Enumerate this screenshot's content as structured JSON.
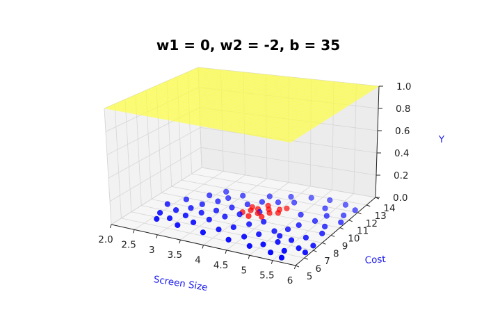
{
  "chart_data": {
    "type": "scatter",
    "subtype": "3d-surface-and-scatter",
    "title": "w1 = 0, w2 = -2, b = 35",
    "xlabel": "Screen Size",
    "ylabel": "Cost",
    "zlabel": "Y",
    "xlim": [
      2.0,
      6.0
    ],
    "ylim": [
      5,
      14
    ],
    "zlim": [
      0.0,
      1.0
    ],
    "x_ticks": [
      "2.0",
      "2.5",
      "3",
      "3.5",
      "4",
      "4.5",
      "5",
      "5.5",
      "6"
    ],
    "y_ticks": [
      "5",
      "6",
      "7",
      "8",
      "9",
      "10",
      "11",
      "12",
      "13",
      "14"
    ],
    "z_ticks": [
      "0.0",
      "0.2",
      "0.4",
      "0.6",
      "0.8",
      "1.0"
    ],
    "grid": true,
    "surface": {
      "color": "#ffff00",
      "function": "sigmoid(w1*x + w2*y + b)",
      "w1": 0,
      "w2": -2,
      "b": 35
    },
    "colors": {
      "class0": "#0000ff",
      "class1": "#ff0000"
    },
    "series": [
      {
        "class": 0,
        "points": [
          [
            2.6,
            6.8
          ],
          [
            2.5,
            7.6
          ],
          [
            2.7,
            8.3
          ],
          [
            2.9,
            8.9
          ],
          [
            3.0,
            9.6
          ],
          [
            3.2,
            10.3
          ],
          [
            3.3,
            10.9
          ],
          [
            3.5,
            11.5
          ],
          [
            2.8,
            7.2
          ],
          [
            3.0,
            7.9
          ],
          [
            3.2,
            8.6
          ],
          [
            3.4,
            9.2
          ],
          [
            3.6,
            9.9
          ],
          [
            3.8,
            10.6
          ],
          [
            4.0,
            11.2
          ],
          [
            3.1,
            6.6
          ],
          [
            3.3,
            7.3
          ],
          [
            3.5,
            8.0
          ],
          [
            3.7,
            8.7
          ],
          [
            3.9,
            9.3
          ],
          [
            4.2,
            10.0
          ],
          [
            3.7,
            6.4
          ],
          [
            3.9,
            7.1
          ],
          [
            4.1,
            7.7
          ],
          [
            4.3,
            8.4
          ],
          [
            4.5,
            9.0
          ],
          [
            4.3,
            6.2
          ],
          [
            4.5,
            6.9
          ],
          [
            4.7,
            7.5
          ],
          [
            4.9,
            8.2
          ],
          [
            5.1,
            8.7
          ],
          [
            4.8,
            6.0
          ],
          [
            5.0,
            6.5
          ],
          [
            5.2,
            7.1
          ],
          [
            5.4,
            7.6
          ],
          [
            5.3,
            5.8
          ],
          [
            5.5,
            6.3
          ],
          [
            5.7,
            6.9
          ],
          [
            5.6,
            5.5
          ],
          [
            5.9,
            6.6
          ],
          [
            4.0,
            12.0
          ],
          [
            4.4,
            12.4
          ],
          [
            4.8,
            12.7
          ],
          [
            5.2,
            12.8
          ],
          [
            5.6,
            12.6
          ],
          [
            5.9,
            12.2
          ],
          [
            5.8,
            11.4
          ],
          [
            5.9,
            10.6
          ],
          [
            5.7,
            9.8
          ],
          [
            5.8,
            9.0
          ],
          [
            5.6,
            8.2
          ],
          [
            5.9,
            7.5
          ],
          [
            5.3,
            11.8
          ],
          [
            5.5,
            11.0
          ],
          [
            5.4,
            10.2
          ],
          [
            5.2,
            9.4
          ],
          [
            5.0,
            10.6
          ],
          [
            4.6,
            11.8
          ],
          [
            4.3,
            11.5
          ],
          [
            2.4,
            8.8
          ],
          [
            2.6,
            9.8
          ],
          [
            2.9,
            10.8
          ],
          [
            3.1,
            11.6
          ],
          [
            5.1,
            7.8
          ]
        ]
      },
      {
        "class": 1,
        "points": [
          [
            3.9,
            9.6
          ],
          [
            4.0,
            10.0
          ],
          [
            4.1,
            10.3
          ],
          [
            4.2,
            9.8
          ],
          [
            4.3,
            10.5
          ],
          [
            4.4,
            10.1
          ],
          [
            4.5,
            10.7
          ],
          [
            4.2,
            10.9
          ],
          [
            3.95,
            10.4
          ],
          [
            4.35,
            9.5
          ],
          [
            4.55,
            10.3
          ],
          [
            4.1,
            9.3
          ],
          [
            4.6,
            11.0
          ]
        ]
      }
    ]
  }
}
